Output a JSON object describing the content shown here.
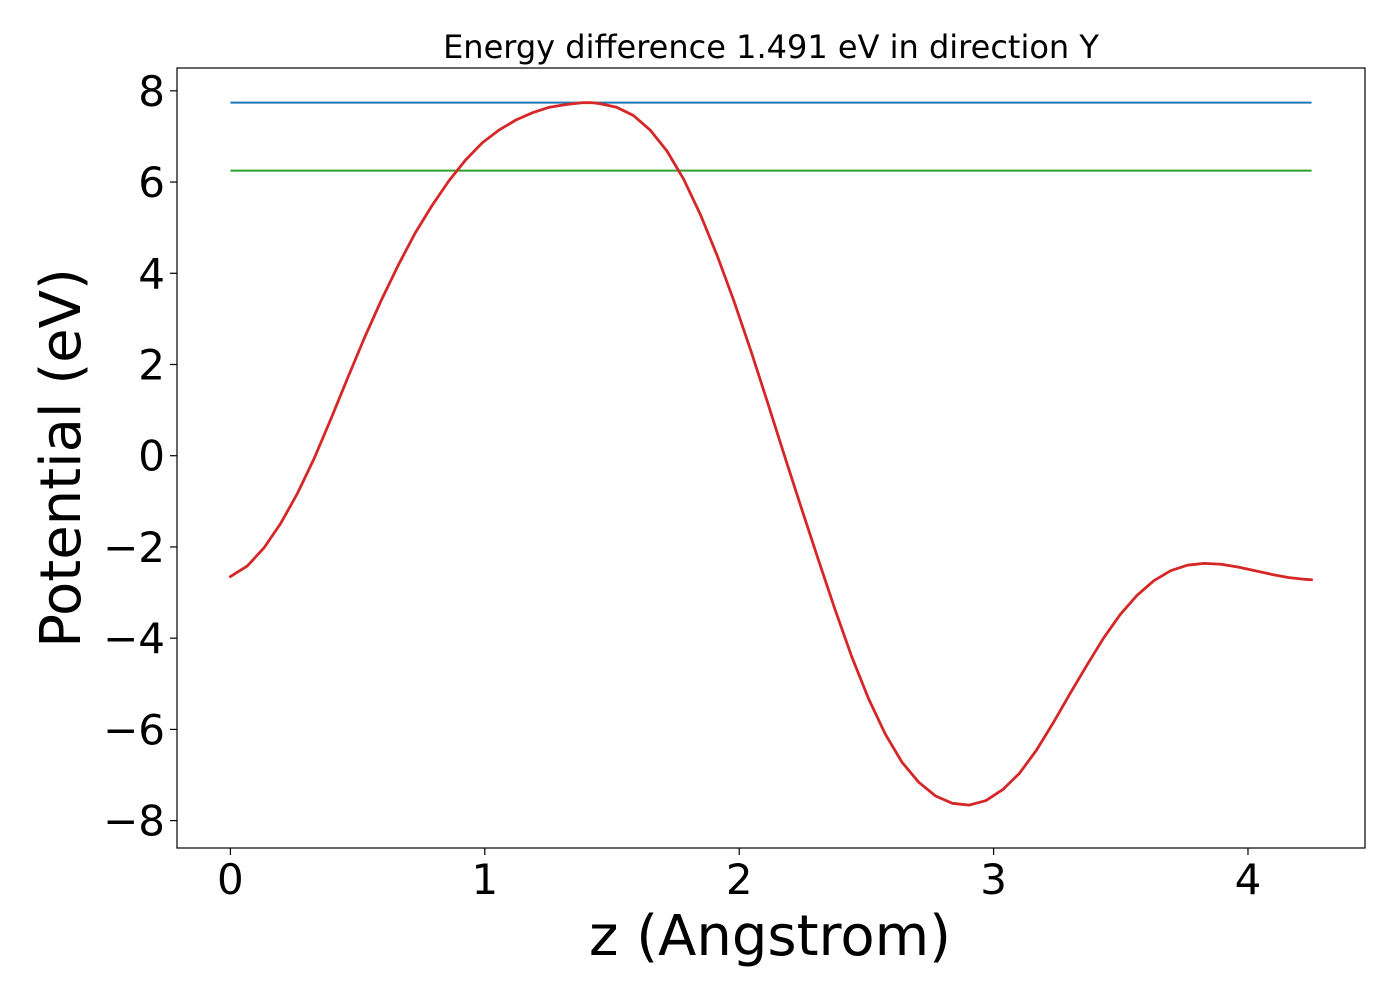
{
  "chart_data": {
    "type": "line",
    "title": "Energy difference 1.491 eV in direction Y",
    "xlabel": "z (Angstrom)",
    "ylabel": "Potential (eV)",
    "xlim": [
      -0.21,
      4.46
    ],
    "ylim": [
      -8.6,
      8.5
    ],
    "xticks": [
      0,
      1,
      2,
      3,
      4
    ],
    "xtick_labels": [
      "0",
      "1",
      "2",
      "3",
      "4"
    ],
    "yticks": [
      8,
      6,
      4,
      2,
      0,
      -2,
      -4,
      -6,
      -8
    ],
    "ytick_labels": [
      "8",
      "6",
      "4",
      "2",
      "0",
      "−2",
      "−4",
      "−6",
      "−8"
    ],
    "grid": false,
    "hlines": [
      {
        "y": 7.74,
        "x_range": [
          0,
          4.25
        ],
        "color": "#1f77b4"
      },
      {
        "y": 6.25,
        "x_range": [
          0,
          4.25
        ],
        "color": "#2ca02c"
      }
    ],
    "series": [
      {
        "color": "#d62728",
        "x": [
          0,
          0.066,
          0.132,
          0.198,
          0.264,
          0.33,
          0.396,
          0.462,
          0.528,
          0.594,
          0.66,
          0.726,
          0.792,
          0.858,
          0.924,
          0.99,
          1.056,
          1.122,
          1.188,
          1.254,
          1.32,
          1.386,
          1.42,
          1.452,
          1.518,
          1.584,
          1.65,
          1.716,
          1.782,
          1.848,
          1.914,
          1.98,
          2.046,
          2.112,
          2.178,
          2.244,
          2.31,
          2.376,
          2.442,
          2.508,
          2.574,
          2.64,
          2.706,
          2.772,
          2.838,
          2.904,
          2.97,
          3.036,
          3.102,
          3.168,
          3.234,
          3.3,
          3.366,
          3.432,
          3.498,
          3.564,
          3.63,
          3.696,
          3.762,
          3.828,
          3.894,
          3.96,
          4.026,
          4.092,
          4.158,
          4.224,
          4.25
        ],
        "y": [
          -2.65,
          -2.42,
          -2.02,
          -1.48,
          -0.82,
          -0.05,
          0.82,
          1.72,
          2.6,
          3.42,
          4.18,
          4.88,
          5.48,
          6.02,
          6.48,
          6.86,
          7.14,
          7.36,
          7.52,
          7.64,
          7.7,
          7.74,
          7.74,
          7.72,
          7.64,
          7.46,
          7.14,
          6.68,
          6.06,
          5.28,
          4.38,
          3.38,
          2.3,
          1.16,
          0.0,
          -1.14,
          -2.26,
          -3.36,
          -4.4,
          -5.32,
          -6.1,
          -6.72,
          -7.16,
          -7.46,
          -7.62,
          -7.66,
          -7.56,
          -7.32,
          -6.96,
          -6.46,
          -5.86,
          -5.22,
          -4.6,
          -4.0,
          -3.48,
          -3.06,
          -2.74,
          -2.52,
          -2.4,
          -2.36,
          -2.38,
          -2.44,
          -2.52,
          -2.6,
          -2.67,
          -2.71,
          -2.72
        ]
      }
    ]
  }
}
